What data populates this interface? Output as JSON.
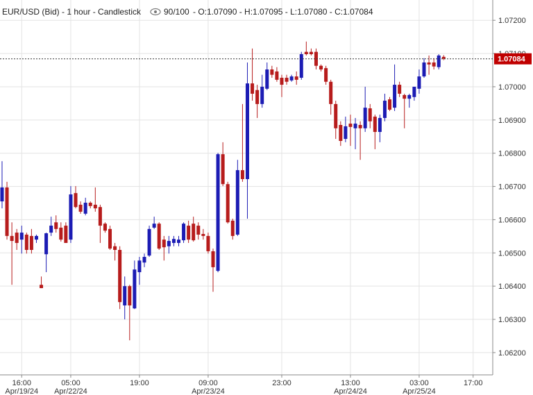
{
  "chart_data": {
    "type": "candlestick",
    "header": {
      "title": "EUR/USD (Bid) - 1 hour - Candlestick",
      "count": "90/100",
      "ohlc": "- O:1.07090 - H:1.07095 - L:1.07080 - C:1.07084"
    },
    "series": [
      {
        "colors": {
          "up": "#1c1cb4",
          "down": "#b71c1c"
        },
        "open": [
          1.06655,
          1.06697,
          1.06551,
          1.06561,
          1.0654,
          1.06555,
          1.06551,
          1.0654,
          1.06404,
          1.06496,
          1.06561,
          1.06592,
          1.06576,
          1.06582,
          1.0654,
          1.0668,
          1.06645,
          1.06618,
          1.06651,
          1.06645,
          1.06638,
          1.06588,
          1.06572,
          1.0652,
          1.06509,
          1.06342,
          1.064,
          1.06333,
          1.06442,
          1.06471,
          1.06492,
          1.06576,
          1.06588,
          1.0654,
          1.0652,
          1.0653,
          1.0653,
          1.06538,
          1.06582,
          1.06588,
          1.06582,
          1.06557,
          1.06551,
          1.06505,
          1.06446,
          1.06797,
          1.06707,
          1.06597,
          1.06555,
          1.06749,
          1.06722,
          1.0701,
          1.0699,
          1.06948,
          1.06994,
          1.07052,
          1.07046,
          1.07027,
          1.07027,
          1.07019,
          1.07031,
          1.07027,
          1.07105,
          1.07105,
          1.07105,
          1.07063,
          1.07056,
          1.07015,
          1.06948,
          1.06885,
          1.06843,
          1.06889,
          1.06875,
          1.06885,
          1.06875,
          1.06935,
          1.0691,
          1.06864,
          1.06906,
          1.06962,
          1.06937,
          1.07006,
          1.06975,
          1.06964,
          1.06969,
          1.06994,
          1.07031,
          1.07073,
          1.07073,
          1.07059,
          1.0709
        ],
        "high": [
          1.06776,
          1.06714,
          1.06592,
          1.06572,
          1.06582,
          1.06561,
          1.06572,
          1.06555,
          1.06429,
          1.06561,
          1.06609,
          1.06613,
          1.06592,
          1.06592,
          1.06701,
          1.06701,
          1.06655,
          1.06666,
          1.06655,
          1.06697,
          1.06645,
          1.06592,
          1.06582,
          1.0653,
          1.0652,
          1.06429,
          1.06404,
          1.06477,
          1.06488,
          1.06498,
          1.06582,
          1.06609,
          1.06592,
          1.06551,
          1.06551,
          1.06551,
          1.06551,
          1.06592,
          1.06597,
          1.06609,
          1.06592,
          1.06572,
          1.06561,
          1.06513,
          1.06801,
          1.06833,
          1.06714,
          1.06603,
          1.0678,
          1.06948,
          1.07073,
          1.07115,
          1.07006,
          1.07036,
          1.07073,
          1.07063,
          1.07059,
          1.07036,
          1.07036,
          1.07036,
          1.07046,
          1.07105,
          1.07136,
          1.07115,
          1.07115,
          1.07067,
          1.07063,
          1.07021,
          1.06958,
          1.06896,
          1.0691,
          1.06916,
          1.06906,
          1.06896,
          1.07,
          1.06948,
          1.06916,
          1.06916,
          1.06979,
          1.06969,
          1.07067,
          1.07015,
          1.06979,
          1.06979,
          1.07,
          1.07052,
          1.07086,
          1.07094,
          1.07086,
          1.07098,
          1.07095
        ],
        "low": [
          1.06634,
          1.0654,
          1.06404,
          1.06509,
          1.06498,
          1.06498,
          1.06498,
          1.0653,
          1.06394,
          1.06442,
          1.06551,
          1.06561,
          1.06534,
          1.0653,
          1.0653,
          1.06634,
          1.06618,
          1.06613,
          1.06634,
          1.06624,
          1.0653,
          1.06561,
          1.06509,
          1.06477,
          1.06331,
          1.063,
          1.06237,
          1.06331,
          1.06404,
          1.06457,
          1.06488,
          1.06572,
          1.06509,
          1.06477,
          1.06498,
          1.0652,
          1.0652,
          1.0653,
          1.0653,
          1.06534,
          1.0654,
          1.0654,
          1.06498,
          1.06383,
          1.06442,
          1.06701,
          1.06588,
          1.0654,
          1.06551,
          1.06714,
          1.06603,
          1.06958,
          1.06906,
          1.06937,
          1.0699,
          1.07027,
          1.07015,
          1.06969,
          1.07006,
          1.07015,
          1.07006,
          1.07021,
          1.07094,
          1.07094,
          1.07052,
          1.07046,
          1.07006,
          1.06916,
          1.06843,
          1.06822,
          1.06833,
          1.06822,
          1.06812,
          1.0678,
          1.06864,
          1.06875,
          1.06812,
          1.06833,
          1.06896,
          1.06927,
          1.06927,
          1.06969,
          1.06875,
          1.06937,
          1.06958,
          1.06979,
          1.07027,
          1.07036,
          1.07052,
          1.07052,
          1.0708
        ],
        "close": [
          1.06697,
          1.06551,
          1.06536,
          1.0653,
          1.06561,
          1.06509,
          1.06509,
          1.06551,
          1.06394,
          1.06559,
          1.06582,
          1.06572,
          1.0654,
          1.0653,
          1.06676,
          1.06638,
          1.06624,
          1.06651,
          1.06641,
          1.06634,
          1.06582,
          1.06567,
          1.06513,
          1.06509,
          1.06352,
          1.064,
          1.06342,
          1.0645,
          1.06477,
          1.06488,
          1.06572,
          1.06588,
          1.06513,
          1.06517,
          1.06536,
          1.06542,
          1.0654,
          1.06588,
          1.0654,
          1.06538,
          1.06555,
          1.06551,
          1.06505,
          1.06457,
          1.06797,
          1.06707,
          1.06592,
          1.06551,
          1.06749,
          1.06722,
          1.0701,
          1.06979,
          1.06948,
          1.07,
          1.07052,
          1.07036,
          1.07021,
          1.07006,
          1.07015,
          1.07031,
          1.07021,
          1.07098,
          1.07098,
          1.07098,
          1.07063,
          1.07052,
          1.07015,
          1.06948,
          1.06875,
          1.06837,
          1.06881,
          1.06879,
          1.06889,
          1.06875,
          1.06937,
          1.06896,
          1.06864,
          1.06906,
          1.06958,
          1.06931,
          1.07006,
          1.06979,
          1.06964,
          1.06975,
          1.07,
          1.07031,
          1.07073,
          1.07067,
          1.07061,
          1.07094,
          1.07084
        ]
      }
    ],
    "current": {
      "value": 1.07084,
      "label": "1.07084",
      "color": "#c00000"
    },
    "xlim": [
      -0.42,
      100
    ],
    "ylim": [
      1.06133,
      1.07261
    ],
    "xticks": [
      {
        "value": 4,
        "label": "16:00",
        "date": "Apr/19/24"
      },
      {
        "value": 14,
        "label": "05:00",
        "date": "Apr/22/24"
      },
      {
        "value": 28,
        "label": "19:00"
      },
      {
        "value": 42,
        "label": "09:00",
        "date": "Apr/23/24"
      },
      {
        "value": 57,
        "label": "23:00"
      },
      {
        "value": 71,
        "label": "13:00",
        "date": "Apr/24/24"
      },
      {
        "value": 85,
        "label": "03:00",
        "date": "Apr/25/24"
      },
      {
        "value": 96,
        "label": "17:00"
      }
    ],
    "yticks": [
      {
        "value": 1.072,
        "label": "1.07200"
      },
      {
        "value": 1.071,
        "label": "1.07100"
      },
      {
        "value": 1.07,
        "label": "1.07000"
      },
      {
        "value": 1.069,
        "label": "1.06900"
      },
      {
        "value": 1.068,
        "label": "1.06800"
      },
      {
        "value": 1.067,
        "label": "1.06700"
      },
      {
        "value": 1.066,
        "label": "1.06600"
      },
      {
        "value": 1.065,
        "label": "1.06500"
      },
      {
        "value": 1.064,
        "label": "1.06400"
      },
      {
        "value": 1.063,
        "label": "1.06300"
      },
      {
        "value": 1.062,
        "label": "1.06200"
      }
    ],
    "grid": true
  }
}
